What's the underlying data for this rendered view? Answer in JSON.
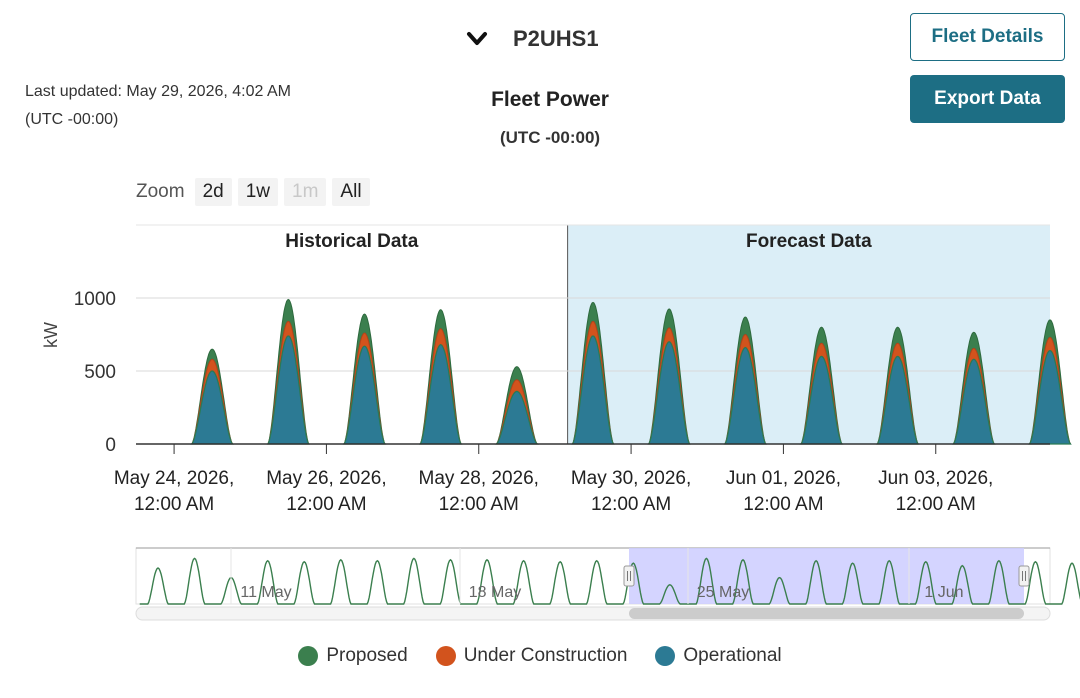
{
  "header": {
    "site_name": "P2UHS1",
    "last_updated": "Last updated: May 29, 2026, 4:02 AM",
    "last_updated_tz": "(UTC -00:00)"
  },
  "buttons": {
    "fleet_details": "Fleet Details",
    "export_data": "Export Data"
  },
  "zoom": {
    "label": "Zoom",
    "options": [
      "2d",
      "1w",
      "1m",
      "All"
    ],
    "disabled": "1m"
  },
  "colors": {
    "proposed": "#3b7f4e",
    "under_construction": "#d2531d",
    "operational": "#2c7a94",
    "forecast_band": "#dbeef7",
    "navigator_selection": "#ccccff",
    "button": "#1d6e84"
  },
  "chart_data": {
    "type": "area",
    "stacked": true,
    "title": "Fleet Power",
    "subtitle": "(UTC -00:00)",
    "ylabel": "kW",
    "ylim": [
      0,
      1500
    ],
    "yticks": [
      0,
      500,
      1000
    ],
    "grid": true,
    "legend_position": "bottom",
    "plot_bands": [
      {
        "label": "Historical Data",
        "from": "2026-05-23T12:00",
        "to": "2026-05-29T04:00"
      },
      {
        "label": "Forecast Data",
        "from": "2026-05-29T04:00",
        "to": "2026-06-04T12:00"
      }
    ],
    "x_range": [
      "2026-05-23T12:00",
      "2026-06-04T12:00"
    ],
    "x_tick_labels": [
      [
        "May 24, 2026,",
        "12:00 AM"
      ],
      [
        "May 26, 2026,",
        "12:00 AM"
      ],
      [
        "May 28, 2026,",
        "12:00 AM"
      ],
      [
        "May 30, 2026,",
        "12:00 AM"
      ],
      [
        "Jun 01, 2026,",
        "12:00 AM"
      ],
      [
        "Jun 03, 2026,",
        "12:00 AM"
      ]
    ],
    "days": [
      "May 24",
      "May 25",
      "May 26",
      "May 27",
      "May 28",
      "May 29",
      "May 30",
      "May 31",
      "Jun 01",
      "Jun 02",
      "Jun 03",
      "Jun 04"
    ],
    "series": [
      {
        "name": "Operational",
        "daily_peak": [
          500,
          740,
          670,
          680,
          360,
          740,
          700,
          660,
          600,
          600,
          580,
          640
        ]
      },
      {
        "name": "Under Construction",
        "daily_peak": [
          80,
          100,
          90,
          110,
          80,
          100,
          95,
          90,
          90,
          90,
          75,
          90
        ]
      },
      {
        "name": "Proposed",
        "daily_peak": [
          70,
          150,
          130,
          130,
          90,
          130,
          130,
          120,
          110,
          110,
          110,
          120
        ]
      }
    ],
    "navigator": {
      "labels": [
        "11 May",
        "18 May",
        "25 May",
        "1 Jun"
      ]
    }
  },
  "legend": {
    "items": [
      "Proposed",
      "Under Construction",
      "Operational"
    ]
  }
}
